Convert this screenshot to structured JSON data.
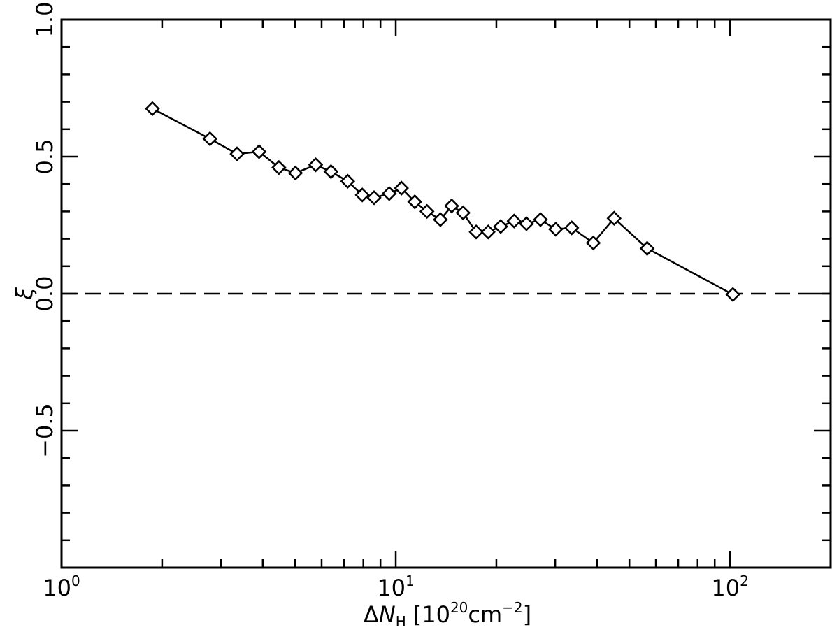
{
  "chart_data": {
    "type": "line",
    "title": "",
    "xlabel_parts": {
      "delta": "Δ",
      "n": "N",
      "sub": "H",
      "open": "[10",
      "exp1": "20",
      "unit": "cm",
      "exp2": "−2",
      "close": "]"
    },
    "ylabel": "ξ",
    "x_scale": "log",
    "xlim": [
      1,
      200
    ],
    "ylim": [
      -1.0,
      1.0
    ],
    "x_ticks": [
      {
        "value": 1,
        "base": "10",
        "exp": "0"
      },
      {
        "value": 10,
        "base": "10",
        "exp": "1"
      },
      {
        "value": 100,
        "base": "10",
        "exp": "2"
      }
    ],
    "y_ticks": [
      {
        "value": 1.0,
        "label": "1.0"
      },
      {
        "value": 0.5,
        "label": "0.5"
      },
      {
        "value": 0.0,
        "label": "0.0"
      },
      {
        "value": -0.5,
        "label": "−0.5"
      }
    ],
    "reference_line": {
      "y": 0.0,
      "style": "dashed"
    },
    "marker": "diamond",
    "grid": false,
    "series": [
      {
        "x": [
          1.87,
          2.78,
          3.35,
          3.9,
          4.47,
          5.01,
          5.76,
          6.4,
          7.18,
          7.94,
          8.61,
          9.56,
          10.4,
          11.4,
          12.4,
          13.6,
          14.7,
          15.9,
          17.4,
          18.9,
          20.6,
          22.6,
          24.6,
          27.1,
          30.1,
          33.6,
          39.0,
          45.0,
          56.5,
          102.0
        ],
        "y": [
          0.675,
          0.565,
          0.51,
          0.518,
          0.46,
          0.44,
          0.47,
          0.445,
          0.41,
          0.36,
          0.35,
          0.365,
          0.385,
          0.335,
          0.3,
          0.27,
          0.32,
          0.295,
          0.225,
          0.225,
          0.245,
          0.265,
          0.255,
          0.27,
          0.235,
          0.24,
          0.185,
          0.275,
          0.165,
          -0.003
        ]
      }
    ]
  }
}
